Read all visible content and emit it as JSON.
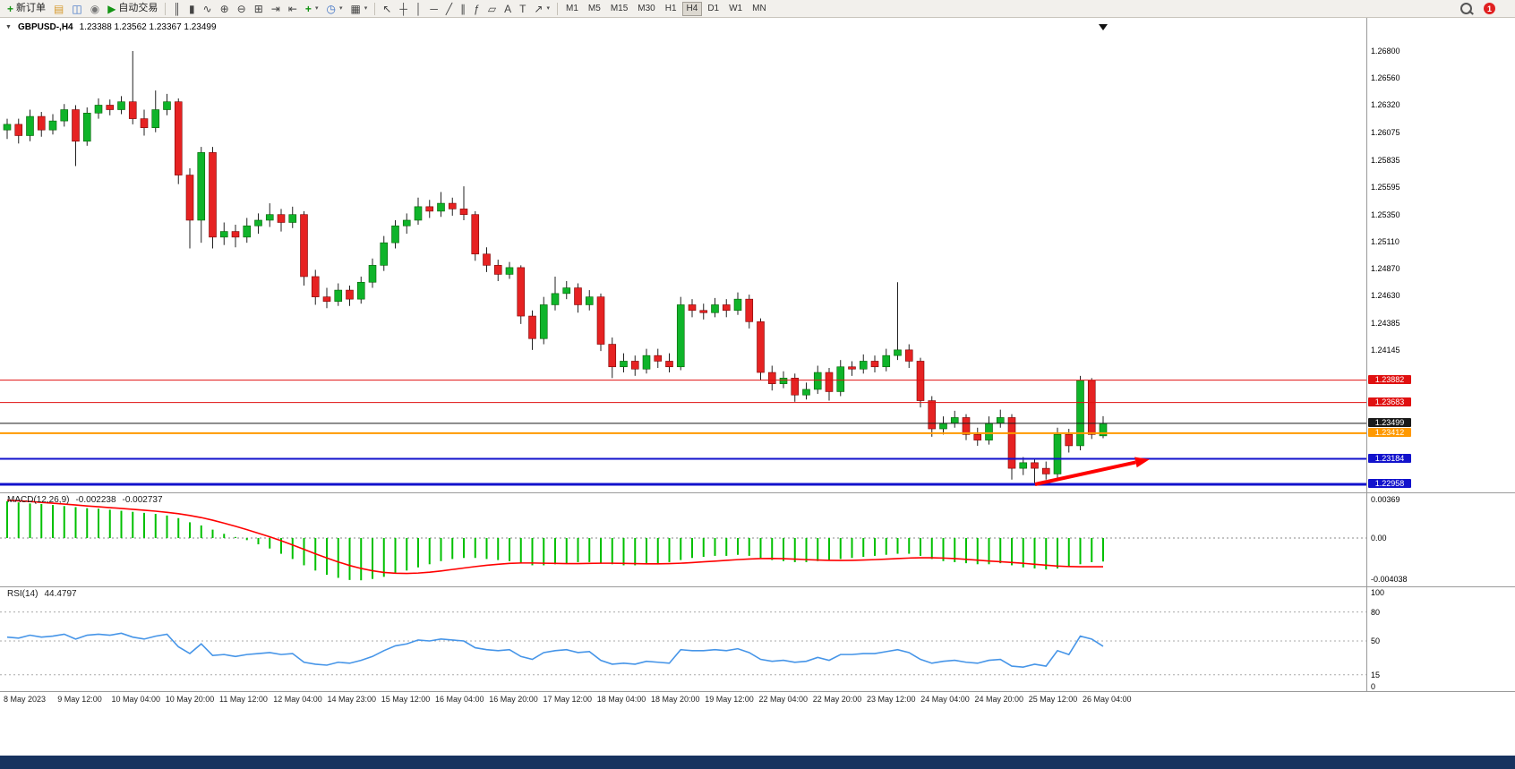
{
  "toolbar": {
    "new_order_label": "新订单",
    "autotrading_label": "自动交易",
    "timeframes": [
      "M1",
      "M5",
      "M15",
      "M30",
      "H1",
      "H4",
      "D1",
      "W1",
      "MN"
    ],
    "active_timeframe": "H4",
    "notification_badge": "1",
    "icons": {
      "new_order": "+",
      "metaeditor": "▤",
      "terminal": "◫",
      "refresh": "◉",
      "autotrading": "▶",
      "bar_chart": "║",
      "candles": "▮",
      "line_chart": "∿",
      "zoom_in": "⊕",
      "zoom_out": "⊖",
      "tile": "⊞",
      "autoscroll": "⇥",
      "shift": "⇤",
      "indicators": "+",
      "periods": "◷",
      "templates": "▦",
      "cursor": "↖",
      "crosshair": "┼",
      "vline": "│",
      "hline": "─",
      "trend": "╱",
      "channel": "∥",
      "fibo": "ƒ",
      "shapes": "▱",
      "text": "A",
      "label": "T",
      "arrows": "↗",
      "dropdown": "▾"
    }
  },
  "chart": {
    "header": {
      "dropdown_icon": "▼",
      "symbol": "GBPUSD-,H4",
      "ohlc": "1.23388 1.23562 1.23367 1.23499"
    },
    "price_axis_labels": [
      "1.26800",
      "1.26560",
      "1.26320",
      "1.26075",
      "1.25835",
      "1.25595",
      "1.25350",
      "1.25110",
      "1.24870",
      "1.24630",
      "1.24385",
      "1.24145"
    ]
  },
  "indicators": {
    "macd": {
      "name": "MACD(12,26,9)",
      "value": "-0.002238",
      "signal_value": "-0.002737",
      "scale": [
        "0.00369",
        "0.00",
        "-0.004038"
      ],
      "histogram_color": "#00c000",
      "signal_color": "#ff0000"
    },
    "rsi": {
      "name": "RSI(14)",
      "value": "44.4797",
      "scale": [
        "100",
        "80",
        "50",
        "15",
        "0"
      ],
      "level_lines": [
        80,
        50,
        15
      ],
      "line_color": "#4695e8"
    }
  },
  "chart_data": {
    "type": "candlestick",
    "symbol": "GBPUSD",
    "timeframe": "H4",
    "colors": {
      "up": "#0fb42a",
      "down": "#e62222",
      "wick": "#222222",
      "background": "#ffffff"
    },
    "x_labels": [
      "8 May 2023",
      "9 May 12:00",
      "10 May 04:00",
      "10 May 20:00",
      "11 May 12:00",
      "12 May 04:00",
      "14 May 23:00",
      "15 May 12:00",
      "16 May 04:00",
      "16 May 20:00",
      "17 May 12:00",
      "18 May 04:00",
      "18 May 20:00",
      "19 May 12:00",
      "22 May 04:00",
      "22 May 20:00",
      "23 May 12:00",
      "24 May 04:00",
      "24 May 20:00",
      "25 May 12:00",
      "26 May 04:00"
    ],
    "levels": [
      {
        "label": "1.23882",
        "price": 1.23882,
        "color": "#e01010",
        "width": 1
      },
      {
        "label": "1.23683",
        "price": 1.23683,
        "color": "#e01010",
        "width": 1
      },
      {
        "label": "1.23499",
        "price": 1.23499,
        "color": "#1a1a1a",
        "width": 1
      },
      {
        "label": "1.23412",
        "price": 1.23412,
        "color": "#ff9900",
        "width": 2
      },
      {
        "label": "1.23184",
        "price": 1.23184,
        "color": "#1212cc",
        "width": 2
      },
      {
        "label": "1.22958",
        "price": 1.22958,
        "color": "#1212cc",
        "width": 3
      }
    ],
    "arrow": {
      "type": "arrow",
      "color": "#ff0000",
      "from": [
        1156,
        541
      ],
      "to": [
        1284,
        513
      ]
    },
    "candles": [
      [
        1.261,
        1.262,
        1.2602,
        1.2615
      ],
      [
        1.2615,
        1.262,
        1.2598,
        1.2605
      ],
      [
        1.2605,
        1.2628,
        1.26,
        1.2622
      ],
      [
        1.2622,
        1.2626,
        1.2604,
        1.261
      ],
      [
        1.261,
        1.2624,
        1.2606,
        1.2618
      ],
      [
        1.2618,
        1.2633,
        1.2613,
        1.2628
      ],
      [
        1.2628,
        1.2632,
        1.2578,
        1.26
      ],
      [
        1.26,
        1.263,
        1.2596,
        1.2625
      ],
      [
        1.2625,
        1.2638,
        1.262,
        1.2632
      ],
      [
        1.2632,
        1.2637,
        1.2623,
        1.2628
      ],
      [
        1.2628,
        1.264,
        1.2624,
        1.2635
      ],
      [
        1.2635,
        1.268,
        1.2615,
        1.262
      ],
      [
        1.262,
        1.2628,
        1.2605,
        1.2612
      ],
      [
        1.2612,
        1.2645,
        1.2608,
        1.2628
      ],
      [
        1.2628,
        1.2642,
        1.2623,
        1.2635
      ],
      [
        1.2635,
        1.2638,
        1.2562,
        1.257
      ],
      [
        1.257,
        1.2576,
        1.2505,
        1.253
      ],
      [
        1.253,
        1.2595,
        1.251,
        1.259
      ],
      [
        1.259,
        1.2595,
        1.2505,
        1.2515
      ],
      [
        1.2515,
        1.2528,
        1.2508,
        1.252
      ],
      [
        1.252,
        1.2526,
        1.2506,
        1.2515
      ],
      [
        1.2515,
        1.2532,
        1.251,
        1.2525
      ],
      [
        1.2525,
        1.2536,
        1.2518,
        1.253
      ],
      [
        1.253,
        1.2545,
        1.2524,
        1.2535
      ],
      [
        1.2535,
        1.254,
        1.252,
        1.2528
      ],
      [
        1.2528,
        1.2542,
        1.2523,
        1.2535
      ],
      [
        1.2535,
        1.2538,
        1.2472,
        1.248
      ],
      [
        1.248,
        1.2486,
        1.2455,
        1.2462
      ],
      [
        1.2462,
        1.247,
        1.2452,
        1.2458
      ],
      [
        1.2458,
        1.2474,
        1.2454,
        1.2468
      ],
      [
        1.2468,
        1.2472,
        1.2454,
        1.246
      ],
      [
        1.246,
        1.248,
        1.2456,
        1.2475
      ],
      [
        1.2475,
        1.2496,
        1.247,
        1.249
      ],
      [
        1.249,
        1.2516,
        1.2485,
        1.251
      ],
      [
        1.251,
        1.253,
        1.2505,
        1.2525
      ],
      [
        1.2525,
        1.2536,
        1.2518,
        1.253
      ],
      [
        1.253,
        1.255,
        1.2526,
        1.2542
      ],
      [
        1.2542,
        1.2548,
        1.2532,
        1.2538
      ],
      [
        1.2538,
        1.2555,
        1.2533,
        1.2545
      ],
      [
        1.2545,
        1.255,
        1.2534,
        1.254
      ],
      [
        1.254,
        1.256,
        1.253,
        1.2535
      ],
      [
        1.2535,
        1.2538,
        1.2494,
        1.25
      ],
      [
        1.25,
        1.2506,
        1.2484,
        1.249
      ],
      [
        1.249,
        1.2495,
        1.2476,
        1.2482
      ],
      [
        1.2482,
        1.2493,
        1.2478,
        1.2488
      ],
      [
        1.2488,
        1.249,
        1.2438,
        1.2445
      ],
      [
        1.2445,
        1.245,
        1.2415,
        1.2425
      ],
      [
        1.2425,
        1.2462,
        1.242,
        1.2455
      ],
      [
        1.2455,
        1.248,
        1.245,
        1.2465
      ],
      [
        1.2465,
        1.2476,
        1.246,
        1.247
      ],
      [
        1.247,
        1.2474,
        1.2448,
        1.2455
      ],
      [
        1.2455,
        1.2468,
        1.245,
        1.2462
      ],
      [
        1.2462,
        1.2465,
        1.2414,
        1.242
      ],
      [
        1.242,
        1.2426,
        1.239,
        1.24
      ],
      [
        1.24,
        1.2412,
        1.2395,
        1.2405
      ],
      [
        1.2405,
        1.241,
        1.2392,
        1.2398
      ],
      [
        1.2398,
        1.2416,
        1.2394,
        1.241
      ],
      [
        1.241,
        1.2416,
        1.2399,
        1.2405
      ],
      [
        1.2405,
        1.2412,
        1.2395,
        1.24
      ],
      [
        1.24,
        1.2462,
        1.2397,
        1.2455
      ],
      [
        1.2455,
        1.246,
        1.2444,
        1.245
      ],
      [
        1.245,
        1.2456,
        1.2442,
        1.2448
      ],
      [
        1.2448,
        1.2461,
        1.2444,
        1.2455
      ],
      [
        1.2455,
        1.246,
        1.2444,
        1.245
      ],
      [
        1.245,
        1.2466,
        1.2446,
        1.246
      ],
      [
        1.246,
        1.2464,
        1.2434,
        1.244
      ],
      [
        1.244,
        1.2443,
        1.2388,
        1.2395
      ],
      [
        1.2395,
        1.2401,
        1.2379,
        1.2385
      ],
      [
        1.2385,
        1.2396,
        1.2381,
        1.239
      ],
      [
        1.239,
        1.2394,
        1.2369,
        1.2375
      ],
      [
        1.2375,
        1.2386,
        1.2371,
        1.238
      ],
      [
        1.238,
        1.2401,
        1.2376,
        1.2395
      ],
      [
        1.2395,
        1.2399,
        1.237,
        1.2378
      ],
      [
        1.2378,
        1.2406,
        1.2374,
        1.24
      ],
      [
        1.24,
        1.2405,
        1.2392,
        1.2398
      ],
      [
        1.2398,
        1.2411,
        1.2394,
        1.2405
      ],
      [
        1.2405,
        1.241,
        1.2395,
        1.24
      ],
      [
        1.24,
        1.2416,
        1.2396,
        1.241
      ],
      [
        1.241,
        1.2475,
        1.2406,
        1.2415
      ],
      [
        1.2415,
        1.242,
        1.2399,
        1.2405
      ],
      [
        1.2405,
        1.2408,
        1.2364,
        1.237
      ],
      [
        1.237,
        1.2374,
        1.2338,
        1.2345
      ],
      [
        1.2345,
        1.2356,
        1.234,
        1.235
      ],
      [
        1.235,
        1.2361,
        1.2346,
        1.2355
      ],
      [
        1.2355,
        1.2358,
        1.2335,
        1.234
      ],
      [
        1.234,
        1.2346,
        1.233,
        1.2335
      ],
      [
        1.2335,
        1.2356,
        1.2331,
        1.235
      ],
      [
        1.235,
        1.2362,
        1.2346,
        1.2355
      ],
      [
        1.2355,
        1.2358,
        1.23,
        1.231
      ],
      [
        1.231,
        1.232,
        1.2304,
        1.2315
      ],
      [
        1.2315,
        1.2319,
        1.2295,
        1.231
      ],
      [
        1.231,
        1.2316,
        1.23,
        1.2305
      ],
      [
        1.2305,
        1.2346,
        1.2301,
        1.234
      ],
      [
        1.234,
        1.2345,
        1.2324,
        1.233
      ],
      [
        1.233,
        1.2392,
        1.2326,
        1.2388
      ],
      [
        1.2388,
        1.239,
        1.2336,
        1.234
      ],
      [
        1.23388,
        1.23562,
        1.23367,
        1.23499
      ]
    ],
    "macd_histogram": [
      0.0035,
      0.0034,
      0.0033,
      0.00325,
      0.00315,
      0.00305,
      0.00295,
      0.00285,
      0.0028,
      0.0027,
      0.0026,
      0.0025,
      0.0024,
      0.0023,
      0.00215,
      0.0019,
      0.0015,
      0.0012,
      0.0008,
      0.0004,
      0.0001,
      -0.0002,
      -0.0006,
      -0.001,
      -0.0015,
      -0.002,
      -0.0026,
      -0.0031,
      -0.0035,
      -0.0038,
      -0.004,
      -0.00403,
      -0.0039,
      -0.0037,
      -0.0034,
      -0.0031,
      -0.0028,
      -0.0025,
      -0.0022,
      -0.002,
      -0.0019,
      -0.0019,
      -0.002,
      -0.0021,
      -0.0022,
      -0.0024,
      -0.0026,
      -0.0026,
      -0.0025,
      -0.0024,
      -0.0023,
      -0.0023,
      -0.0024,
      -0.0025,
      -0.0026,
      -0.0026,
      -0.0025,
      -0.0024,
      -0.0023,
      -0.0021,
      -0.0019,
      -0.0018,
      -0.0017,
      -0.0017,
      -0.0016,
      -0.0017,
      -0.0019,
      -0.0021,
      -0.0022,
      -0.0023,
      -0.0023,
      -0.0022,
      -0.0021,
      -0.002,
      -0.0019,
      -0.0018,
      -0.0017,
      -0.0016,
      -0.0015,
      -0.0015,
      -0.0017,
      -0.002,
      -0.0022,
      -0.0023,
      -0.0024,
      -0.0025,
      -0.0025,
      -0.0024,
      -0.0026,
      -0.0028,
      -0.0029,
      -0.003,
      -0.0029,
      -0.0027,
      -0.0025,
      -0.0023,
      -0.002238
    ],
    "macd_signal": [
      0.0036,
      0.00355,
      0.00348,
      0.0034,
      0.00332,
      0.00324,
      0.00315,
      0.00306,
      0.00298,
      0.0029,
      0.00282,
      0.00274,
      0.00265,
      0.00256,
      0.00245,
      0.00232,
      0.00215,
      0.00195,
      0.0017,
      0.00142,
      0.00112,
      0.0008,
      0.00046,
      0.00012,
      -0.00026,
      -0.00066,
      -0.00108,
      -0.0015,
      -0.0019,
      -0.00228,
      -0.00262,
      -0.0029,
      -0.00312,
      -0.00328,
      -0.00336,
      -0.00338,
      -0.00334,
      -0.00326,
      -0.00314,
      -0.003,
      -0.00286,
      -0.00272,
      -0.0026,
      -0.0025,
      -0.00242,
      -0.00238,
      -0.00238,
      -0.0024,
      -0.00242,
      -0.00244,
      -0.00244,
      -0.00242,
      -0.0024,
      -0.0024,
      -0.00242,
      -0.00244,
      -0.00246,
      -0.00246,
      -0.00244,
      -0.0024,
      -0.00234,
      -0.00227,
      -0.0022,
      -0.00213,
      -0.00206,
      -0.002,
      -0.00196,
      -0.00195,
      -0.00197,
      -0.00201,
      -0.00206,
      -0.0021,
      -0.00213,
      -0.00214,
      -0.00213,
      -0.0021,
      -0.00206,
      -0.00201,
      -0.00196,
      -0.00191,
      -0.00188,
      -0.00188,
      -0.00191,
      -0.00196,
      -0.00203,
      -0.00211,
      -0.00219,
      -0.00226,
      -0.00233,
      -0.00241,
      -0.0025,
      -0.00259,
      -0.00267,
      -0.00272,
      -0.00274,
      -0.00274,
      -0.002737
    ],
    "rsi_values": [
      54,
      53,
      56,
      54,
      55,
      57,
      52,
      56,
      57,
      56,
      58,
      54,
      52,
      55,
      57,
      44,
      37,
      47,
      35,
      36,
      34,
      36,
      37,
      38,
      36,
      37,
      28,
      26,
      25,
      28,
      27,
      30,
      34,
      40,
      45,
      47,
      51,
      50,
      52,
      51,
      50,
      43,
      41,
      40,
      41,
      34,
      31,
      38,
      40,
      41,
      38,
      39,
      30,
      26,
      27,
      26,
      29,
      28,
      27,
      41,
      40,
      40,
      41,
      40,
      42,
      38,
      31,
      29,
      30,
      28,
      29,
      33,
      30,
      36,
      36,
      37,
      37,
      39,
      41,
      38,
      31,
      27,
      29,
      30,
      28,
      27,
      30,
      31,
      24,
      23,
      26,
      24,
      40,
      36,
      55,
      52,
      44.48
    ]
  }
}
